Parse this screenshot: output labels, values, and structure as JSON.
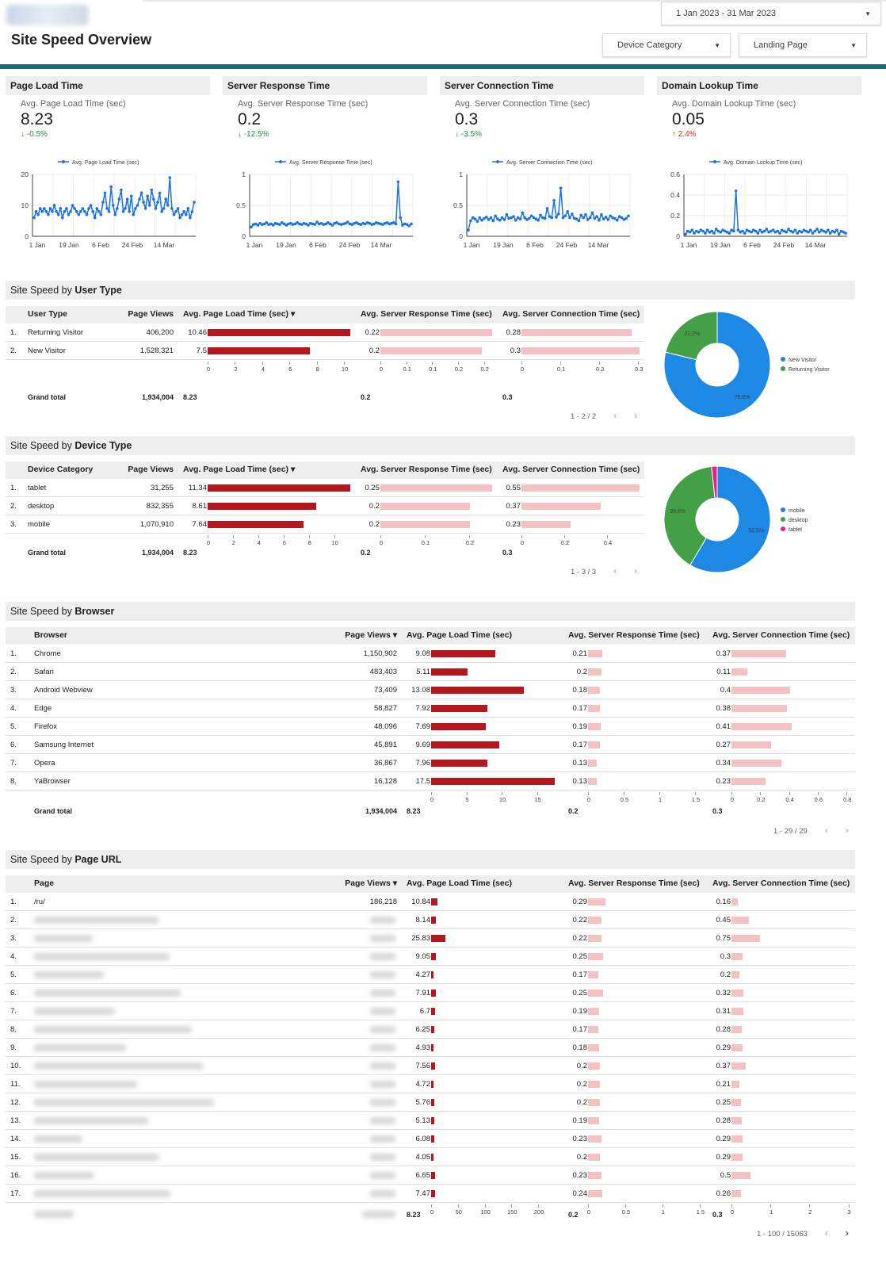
{
  "header": {
    "title": "Site Speed Overview",
    "date_range": "1 Jan 2023 - 31 Mar 2023",
    "filters": [
      "Device Category",
      "Landing Page"
    ]
  },
  "kpis": [
    {
      "title": "Page Load Time",
      "label": "Avg. Page Load Time (sec)",
      "value": "8.23",
      "delta": "-0.5%",
      "dir": "down",
      "legend": "Avg. Page Load Time (sec)",
      "yticks": [
        "20",
        "10",
        "0"
      ],
      "ymax": 20
    },
    {
      "title": "Server Response Time",
      "label": "Avg. Server Response Time (sec)",
      "value": "0.2",
      "delta": "-12.5%",
      "dir": "down",
      "legend": "Avg. Server Response Time (sec)",
      "yticks": [
        "1",
        "0.5",
        "0"
      ],
      "ymax": 1
    },
    {
      "title": "Server Connection Time",
      "label": "Avg. Server Connection Time (sec)",
      "value": "0.3",
      "delta": "-3.5%",
      "dir": "down",
      "legend": "Avg. Server Connection Time (sec)",
      "yticks": [
        "1",
        "0.5",
        "0"
      ],
      "ymax": 1
    },
    {
      "title": "Domain Lookup Time",
      "label": "Avg. Domain Lookup Time (sec)",
      "value": "0.05",
      "delta": "2.4%",
      "dir": "up",
      "legend": "Avg. Domain Lookup Time (sec)",
      "yticks": [
        "0.6",
        "0.4",
        "0.2",
        "0"
      ],
      "ymax": 0.6
    }
  ],
  "xticks": [
    "1 Jan",
    "19 Jan",
    "6 Feb",
    "24 Feb",
    "14 Mar"
  ],
  "chart_data": [
    {
      "type": "line",
      "title": "Page Load Time",
      "ylim": [
        0,
        20
      ],
      "x": "1 Jan 2023 - 31 Mar 2023 (daily)",
      "series": [
        {
          "name": "Avg. Page Load Time (sec)",
          "values": [
            6,
            8,
            7,
            9,
            8,
            9,
            8,
            7,
            9,
            8,
            10,
            8,
            7,
            9,
            6,
            8,
            9,
            7,
            8,
            10,
            9,
            8,
            7,
            8,
            9,
            8,
            7,
            9,
            10,
            8,
            6,
            9,
            8,
            7,
            11,
            14,
            9,
            8,
            16,
            10,
            7,
            9,
            12,
            15,
            8,
            9,
            12,
            8,
            13,
            7,
            9,
            10,
            12,
            14,
            11,
            9,
            13,
            10,
            15,
            12,
            9,
            11,
            14,
            8,
            9,
            12,
            10,
            19,
            9,
            7,
            8,
            9,
            6,
            7,
            8,
            7,
            9,
            6,
            8,
            11
          ]
        }
      ]
    },
    {
      "type": "line",
      "title": "Server Response Time",
      "ylim": [
        0,
        1
      ],
      "x": "1 Jan 2023 - 31 Mar 2023 (daily)",
      "series": [
        {
          "name": "Avg. Server Response Time (sec)",
          "values": [
            0.15,
            0.19,
            0.2,
            0.18,
            0.21,
            0.19,
            0.2,
            0.22,
            0.19,
            0.2,
            0.18,
            0.21,
            0.2,
            0.19,
            0.22,
            0.2,
            0.18,
            0.2,
            0.21,
            0.19,
            0.2,
            0.22,
            0.2,
            0.19,
            0.21,
            0.2,
            0.18,
            0.21,
            0.2,
            0.19,
            0.23,
            0.2,
            0.21,
            0.19,
            0.2,
            0.22,
            0.2,
            0.18,
            0.21,
            0.22,
            0.2,
            0.19,
            0.2,
            0.21,
            0.23,
            0.2,
            0.19,
            0.21,
            0.22,
            0.2,
            0.19,
            0.21,
            0.2,
            0.22,
            0.21,
            0.19,
            0.2,
            0.22,
            0.21,
            0.2,
            0.19,
            0.21,
            0.22,
            0.2,
            0.21,
            0.22,
            0.2,
            0.88,
            0.3,
            0.18,
            0.2,
            0.19,
            0.17,
            0.2
          ]
        }
      ]
    },
    {
      "type": "line",
      "title": "Server Connection Time",
      "ylim": [
        0,
        1
      ],
      "x": "1 Jan 2023 - 31 Mar 2023 (daily)",
      "series": [
        {
          "name": "Avg. Server Connection Time (sec)",
          "values": [
            0.1,
            0.25,
            0.3,
            0.28,
            0.24,
            0.3,
            0.26,
            0.29,
            0.31,
            0.27,
            0.3,
            0.25,
            0.33,
            0.28,
            0.26,
            0.3,
            0.27,
            0.35,
            0.29,
            0.3,
            0.32,
            0.26,
            0.3,
            0.28,
            0.38,
            0.3,
            0.27,
            0.29,
            0.33,
            0.3,
            0.28,
            0.26,
            0.34,
            0.3,
            0.29,
            0.45,
            0.32,
            0.3,
            0.58,
            0.31,
            0.36,
            0.78,
            0.3,
            0.33,
            0.4,
            0.3,
            0.36,
            0.29,
            0.28,
            0.25,
            0.34,
            0.3,
            0.35,
            0.27,
            0.3,
            0.38,
            0.29,
            0.32,
            0.26,
            0.35,
            0.28,
            0.31,
            0.27,
            0.33,
            0.3,
            0.29,
            0.26,
            0.32,
            0.3,
            0.27,
            0.29,
            0.33
          ]
        }
      ]
    },
    {
      "type": "line",
      "title": "Domain Lookup Time",
      "ylim": [
        0,
        0.6
      ],
      "x": "1 Jan 2023 - 31 Mar 2023 (daily)",
      "series": [
        {
          "name": "Avg. Domain Lookup Time (sec)",
          "values": [
            0.02,
            0.05,
            0.04,
            0.06,
            0.03,
            0.05,
            0.04,
            0.06,
            0.05,
            0.03,
            0.06,
            0.04,
            0.05,
            0.03,
            0.07,
            0.05,
            0.04,
            0.06,
            0.05,
            0.04,
            0.03,
            0.06,
            0.05,
            0.44,
            0.06,
            0.04,
            0.05,
            0.03,
            0.06,
            0.05,
            0.04,
            0.06,
            0.05,
            0.03,
            0.06,
            0.04,
            0.05,
            0.07,
            0.04,
            0.05,
            0.06,
            0.04,
            0.05,
            0.03,
            0.06,
            0.05,
            0.04,
            0.07,
            0.05,
            0.04,
            0.06,
            0.03,
            0.05,
            0.04,
            0.06,
            0.05,
            0.04,
            0.06,
            0.03,
            0.05,
            0.07,
            0.04,
            0.06,
            0.05,
            0.04,
            0.06,
            0.03,
            0.05,
            0.04,
            0.06,
            0.02,
            0.05,
            0.04,
            0.03
          ]
        }
      ]
    },
    {
      "type": "pie",
      "title": "Site Speed by User Type",
      "categories": [
        "New Visitor",
        "Returning Visitor"
      ],
      "values": [
        78.8,
        21.2
      ],
      "labels": [
        "78.8%",
        "21.2%"
      ]
    },
    {
      "type": "pie",
      "title": "Site Speed by Device Type",
      "categories": [
        "mobile",
        "desktop",
        "tablet"
      ],
      "values": [
        58.5,
        39.8,
        1.7
      ],
      "labels": [
        "58.5%",
        "39.8%",
        ""
      ]
    }
  ],
  "pie_colors": [
    "#1e88e5",
    "#43a047",
    "#e91e8c"
  ],
  "user_type": {
    "title_prefix": "Site Speed by ",
    "title_bold": "User Type",
    "headers": [
      "User Type",
      "Page Views",
      "Avg. Page Load Time (sec) ▾",
      "Avg. Server Response Time (sec)",
      "Avg. Server Connection Time (sec)"
    ],
    "rows": [
      {
        "n": "1.",
        "name": "Returning Visitor",
        "views": "406,200",
        "plt": "10.46",
        "srt": "0.22",
        "sct": "0.28"
      },
      {
        "n": "2.",
        "name": "New Visitor",
        "views": "1,528,321",
        "plt": "7.5",
        "srt": "0.2",
        "sct": "0.3"
      }
    ],
    "ticks_plt": [
      "0",
      "2",
      "4",
      "6",
      "8",
      "10"
    ],
    "ticks_srt": [
      "0",
      "0.1",
      "0.1",
      "0.2",
      "0.2"
    ],
    "ticks_sct": [
      "0",
      "0.1",
      "0.2",
      "0.3"
    ],
    "grand": {
      "label": "Grand total",
      "views": "1,934,004",
      "plt": "8.23",
      "srt": "0.2",
      "sct": "0.3"
    },
    "pager": "1 - 2 / 2"
  },
  "device_type": {
    "title_prefix": "Site Speed by ",
    "title_bold": "Device Type",
    "headers": [
      "Device Category",
      "Page Views",
      "Avg. Page Load Time (sec) ▾",
      "Avg. Server Response Time (sec)",
      "Avg. Server Connection Time (sec)"
    ],
    "rows": [
      {
        "n": "1.",
        "name": "tablet",
        "views": "31,255",
        "plt": "11.34",
        "srt": "0.25",
        "sct": "0.55"
      },
      {
        "n": "2.",
        "name": "desktop",
        "views": "832,355",
        "plt": "8.61",
        "srt": "0.2",
        "sct": "0.37"
      },
      {
        "n": "3.",
        "name": "mobile",
        "views": "1,070,910",
        "plt": "7.64",
        "srt": "0.2",
        "sct": "0.23"
      }
    ],
    "ticks_plt": [
      "0",
      "2",
      "4",
      "6",
      "8",
      "10"
    ],
    "ticks_srt": [
      "0",
      "0.1",
      "0.2"
    ],
    "ticks_sct": [
      "0",
      "0.2",
      "0.4"
    ],
    "grand": {
      "label": "Grand total",
      "views": "1,934,004",
      "plt": "8.23",
      "srt": "0.2",
      "sct": "0.3"
    },
    "pager": "1 - 3 / 3"
  },
  "browser": {
    "title_prefix": "Site Speed by ",
    "title_bold": "Browser",
    "headers": [
      "Browser",
      "Page Views ▾",
      "Avg. Page Load Time (sec)",
      "Avg. Server Response Time (sec)",
      "Avg. Server Connection Time (sec)"
    ],
    "rows": [
      {
        "n": "1.",
        "name": "Chrome",
        "views": "1,150,902",
        "plt": "9.08",
        "srt": "0.21",
        "sct": "0.37"
      },
      {
        "n": "2.",
        "name": "Safari",
        "views": "483,403",
        "plt": "5.11",
        "srt": "0.2",
        "sct": "0.11"
      },
      {
        "n": "3.",
        "name": "Android Webview",
        "views": "73,409",
        "plt": "13.08",
        "srt": "0.18",
        "sct": "0.4"
      },
      {
        "n": "4.",
        "name": "Edge",
        "views": "58,827",
        "plt": "7.92",
        "srt": "0.17",
        "sct": "0.38"
      },
      {
        "n": "5.",
        "name": "Firefox",
        "views": "48,096",
        "plt": "7.69",
        "srt": "0.19",
        "sct": "0.41"
      },
      {
        "n": "6.",
        "name": "Samsung Internet",
        "views": "45,891",
        "plt": "9.69",
        "srt": "0.17",
        "sct": "0.27"
      },
      {
        "n": "7.",
        "name": "Opera",
        "views": "36,867",
        "plt": "7.96",
        "srt": "0.13",
        "sct": "0.34"
      },
      {
        "n": "8.",
        "name": "YaBrowser",
        "views": "16,128",
        "plt": "17.5",
        "srt": "0.13",
        "sct": "0.23"
      }
    ],
    "ticks_plt": [
      "0",
      "5",
      "10",
      "15"
    ],
    "ticks_srt": [
      "0",
      "0.5",
      "1",
      "1.5"
    ],
    "ticks_sct": [
      "0",
      "0.2",
      "0.4",
      "0.6",
      "0.8"
    ],
    "grand": {
      "label": "Grand total",
      "views": "1,934,004",
      "plt": "8.23",
      "srt": "0.2",
      "sct": "0.3"
    },
    "pager": "1 - 29 / 29"
  },
  "page_url": {
    "title_prefix": "Site Speed by ",
    "title_bold": "Page URL",
    "headers": [
      "Page",
      "Page Views ▾",
      "Avg. Page Load Time (sec)",
      "Avg. Server Response Time (sec)",
      "Avg. Server Connection Time (sec)"
    ],
    "rows": [
      {
        "n": "1.",
        "name": "/ru/",
        "views": "186,218",
        "plt": "10.84",
        "srt": "0.29",
        "sct": "0.16"
      },
      {
        "n": "2.",
        "name": "",
        "views": "",
        "plt": "8.14",
        "srt": "0.22",
        "sct": "0.45"
      },
      {
        "n": "3.",
        "name": "",
        "views": "",
        "plt": "25.83",
        "srt": "0.22",
        "sct": "0.75"
      },
      {
        "n": "4.",
        "name": "",
        "views": "",
        "plt": "9.05",
        "srt": "0.25",
        "sct": "0.3"
      },
      {
        "n": "5.",
        "name": "",
        "views": "",
        "plt": "4.27",
        "srt": "0.17",
        "sct": "0.2"
      },
      {
        "n": "6.",
        "name": "",
        "views": "",
        "plt": "7.91",
        "srt": "0.25",
        "sct": "0.32"
      },
      {
        "n": "7.",
        "name": "",
        "views": "",
        "plt": "6.7",
        "srt": "0.19",
        "sct": "0.31"
      },
      {
        "n": "8.",
        "name": "",
        "views": "",
        "plt": "6.25",
        "srt": "0.17",
        "sct": "0.28"
      },
      {
        "n": "9.",
        "name": "",
        "views": "",
        "plt": "4.93",
        "srt": "0.18",
        "sct": "0.29"
      },
      {
        "n": "10.",
        "name": "",
        "views": "",
        "plt": "7.56",
        "srt": "0.2",
        "sct": "0.37"
      },
      {
        "n": "11.",
        "name": "",
        "views": "",
        "plt": "4.72",
        "srt": "0.2",
        "sct": "0.21"
      },
      {
        "n": "12.",
        "name": "",
        "views": "",
        "plt": "5.76",
        "srt": "0.2",
        "sct": "0.25"
      },
      {
        "n": "13.",
        "name": "",
        "views": "",
        "plt": "5.13",
        "srt": "0.19",
        "sct": "0.28"
      },
      {
        "n": "14.",
        "name": "",
        "views": "",
        "plt": "6.08",
        "srt": "0.23",
        "sct": "0.29"
      },
      {
        "n": "15.",
        "name": "",
        "views": "",
        "plt": "4.05",
        "srt": "0.2",
        "sct": "0.29"
      },
      {
        "n": "16.",
        "name": "",
        "views": "",
        "plt": "6.65",
        "srt": "0.23",
        "sct": "0.5"
      },
      {
        "n": "17.",
        "name": "",
        "views": "",
        "plt": "7.47",
        "srt": "0.24",
        "sct": "0.26"
      }
    ],
    "ticks_plt": [
      "0",
      "50",
      "100",
      "150",
      "200"
    ],
    "ticks_srt": [
      "0",
      "0.5",
      "1",
      "1.5"
    ],
    "ticks_sct": [
      "0",
      "1",
      "2",
      "3"
    ],
    "grand": {
      "label": "",
      "views": "",
      "plt": "8.23",
      "srt": "0.2",
      "sct": "0.3"
    },
    "pager": "1 - 100 / 15063"
  }
}
